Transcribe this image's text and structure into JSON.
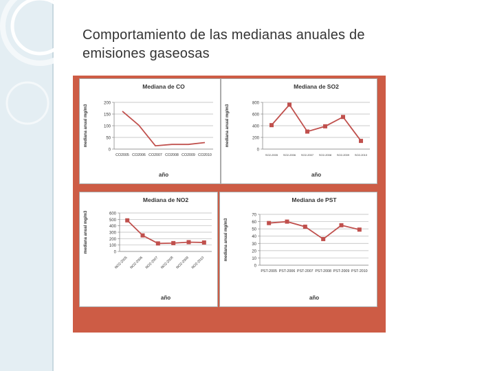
{
  "slide": {
    "title_line1": "Comportamiento de las medianas anuales de",
    "title_line2": "emisiones gaseosas"
  },
  "colors": {
    "frame": "#cd5c45",
    "series": "#c0504d",
    "grid": "#b8b8b8",
    "sidebar": "#e4eef3"
  },
  "chart_data": [
    {
      "id": "co",
      "type": "line",
      "title": "Mediana de CO",
      "xlabel": "año",
      "ylabel": "mediana anual mg/m3",
      "categories": [
        "CO2005",
        "CO2006",
        "CO2007",
        "CO2008",
        "CO2009",
        "CO2010"
      ],
      "values": [
        162,
        102,
        14,
        20,
        20,
        28
      ],
      "markers": false,
      "ylim": [
        0,
        200
      ],
      "yticks": [
        0,
        50,
        100,
        150,
        200
      ],
      "rotate_labels": false,
      "grid": true,
      "legend": "none"
    },
    {
      "id": "so2",
      "type": "line",
      "title": "Mediana de SO2",
      "xlabel": "año",
      "ylabel": "mediana anual mg/m3",
      "categories": [
        "SO2-2005",
        "SO2-2006",
        "SO2-2007",
        "SO2-2008",
        "SO2-2009",
        "SO2-2010"
      ],
      "values": [
        410,
        760,
        300,
        390,
        550,
        140
      ],
      "markers": true,
      "ylim": [
        0,
        800
      ],
      "yticks": [
        0,
        200,
        400,
        600,
        800
      ],
      "rotate_labels": false,
      "grid": true,
      "legend": "none"
    },
    {
      "id": "no2",
      "type": "line",
      "title": "Mediana de NO2",
      "xlabel": "año",
      "ylabel": "mediana anual mg/m3",
      "categories": [
        "NO2-2005",
        "NO2-2006",
        "NO2-2007",
        "NO2-2008",
        "NO2-2009",
        "NO2-2010"
      ],
      "values": [
        485,
        250,
        125,
        130,
        145,
        140
      ],
      "markers": true,
      "ylim": [
        0,
        600
      ],
      "yticks": [
        0,
        100,
        200,
        300,
        400,
        500,
        600
      ],
      "rotate_labels": true,
      "grid": true,
      "legend": "none"
    },
    {
      "id": "pst",
      "type": "line",
      "title": "Mediana de PST",
      "xlabel": "año",
      "ylabel": "mediana anual mg/m3",
      "categories": [
        "PST-2005",
        "PST-2006",
        "PST-2007",
        "PST-2008",
        "PST-2009",
        "PST-2010"
      ],
      "values": [
        58,
        60,
        53,
        36,
        55,
        49
      ],
      "markers": true,
      "ylim": [
        0,
        70
      ],
      "yticks": [
        0,
        10,
        20,
        30,
        40,
        50,
        60,
        70
      ],
      "rotate_labels": false,
      "grid": true,
      "legend": "none"
    }
  ]
}
